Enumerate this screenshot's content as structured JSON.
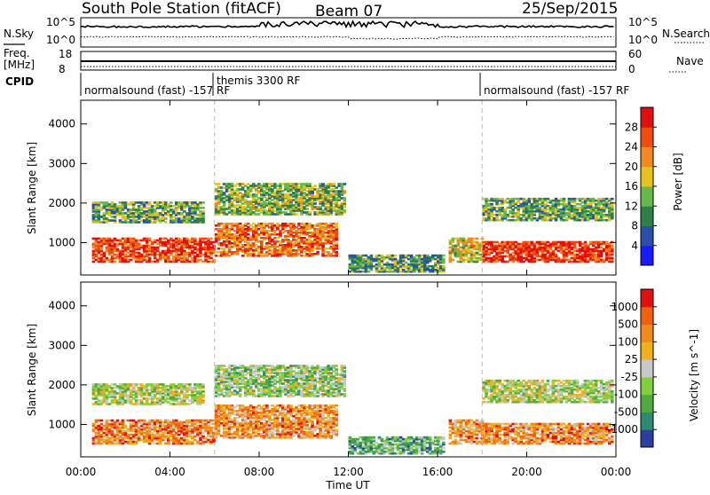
{
  "header": {
    "station": "South Pole Station (fitACF)",
    "beam": "Beam 07",
    "date": "25/Sep/2015"
  },
  "noise_panel": {
    "left_label": "N.Sky",
    "right_label": "N.Search",
    "left_ticks": [
      "10^5",
      "10^0"
    ],
    "right_ticks": [
      "10^5",
      "10^0"
    ]
  },
  "freq_panel": {
    "left_label_line1": "Freq.",
    "left_label_line2": "[MHz]",
    "left_ticks": [
      "18",
      "8"
    ],
    "right_label": "Nave",
    "right_ticks": [
      "60",
      "0"
    ]
  },
  "cpid": {
    "label": "CPID",
    "segments": [
      "normalsound (fast) -157 RF",
      "themis 3300 RF",
      "normalsound (fast) -157 RF"
    ]
  },
  "chart_data": [
    {
      "type": "heatmap",
      "title": "",
      "xlabel": "Time UT",
      "ylabel": "Slant Range [km]",
      "x_ticks": [
        "00:00",
        "04:00",
        "08:00",
        "12:00",
        "16:00",
        "20:00",
        "00:00"
      ],
      "y_ticks": [
        "1000",
        "2000",
        "3000",
        "4000"
      ],
      "xlim_hours": [
        0,
        24
      ],
      "ylim": [
        180,
        4600
      ],
      "colorbar_label": "Power [dB]",
      "colorbar_ticks": [
        "4",
        "8",
        "12",
        "16",
        "20",
        "24",
        "28"
      ],
      "colorbar_range": [
        0,
        32
      ],
      "colors": [
        "#1a1aff",
        "#2a4fa8",
        "#2f7f4a",
        "#66b84a",
        "#e8c020",
        "#f08a20",
        "#ee4d10",
        "#e01010"
      ],
      "bands": [
        {
          "t0": 0.5,
          "t1": 6.0,
          "r0": 500,
          "r1": 1100,
          "level": 0.85
        },
        {
          "t0": 6.0,
          "t1": 11.5,
          "r0": 650,
          "r1": 1500,
          "level": 0.75
        },
        {
          "t0": 0.5,
          "t1": 5.5,
          "r0": 1500,
          "r1": 2000,
          "level": 0.4
        },
        {
          "t0": 6.0,
          "t1": 11.8,
          "r0": 1700,
          "r1": 2500,
          "level": 0.45
        },
        {
          "t0": 12.0,
          "t1": 16.2,
          "r0": 250,
          "r1": 700,
          "level": 0.35
        },
        {
          "t0": 16.5,
          "t1": 18.0,
          "r0": 500,
          "r1": 1100,
          "level": 0.55
        },
        {
          "t0": 18.0,
          "t1": 23.8,
          "r0": 500,
          "r1": 1000,
          "level": 0.88
        },
        {
          "t0": 18.0,
          "t1": 23.8,
          "r0": 1550,
          "r1": 2100,
          "level": 0.4
        }
      ]
    },
    {
      "type": "heatmap",
      "title": "",
      "xlabel": "Time UT",
      "ylabel": "Slant Range [km]",
      "x_ticks": [
        "00:00",
        "04:00",
        "08:00",
        "12:00",
        "16:00",
        "20:00",
        "00:00"
      ],
      "y_ticks": [
        "1000",
        "2000",
        "3000",
        "4000"
      ],
      "xlim_hours": [
        0,
        24
      ],
      "ylim": [
        180,
        4600
      ],
      "colorbar_label": "Velocity [m s^-1]",
      "colorbar_ticks": [
        "1000",
        "500",
        "100",
        "25",
        "-25",
        "-100",
        "-500",
        "-1000"
      ],
      "colors": [
        "#2a3fa0",
        "#2e8a70",
        "#4faa40",
        "#80cf40",
        "#c8c8c8",
        "#f0b020",
        "#f08a20",
        "#f06010",
        "#e01010"
      ],
      "bands": [
        {
          "t0": 0.5,
          "t1": 6.0,
          "r0": 500,
          "r1": 1100,
          "level": 0.75
        },
        {
          "t0": 6.0,
          "t1": 11.5,
          "r0": 650,
          "r1": 1500,
          "level": 0.7
        },
        {
          "t0": 0.5,
          "t1": 5.5,
          "r0": 1500,
          "r1": 2000,
          "level": 0.45
        },
        {
          "t0": 6.0,
          "t1": 11.8,
          "r0": 1700,
          "r1": 2500,
          "level": 0.4
        },
        {
          "t0": 12.0,
          "t1": 16.2,
          "r0": 250,
          "r1": 700,
          "level": 0.3
        },
        {
          "t0": 16.5,
          "t1": 18.0,
          "r0": 500,
          "r1": 1100,
          "level": 0.7
        },
        {
          "t0": 18.0,
          "t1": 23.8,
          "r0": 500,
          "r1": 1000,
          "level": 0.72
        },
        {
          "t0": 18.0,
          "t1": 23.8,
          "r0": 1550,
          "r1": 2100,
          "level": 0.45
        }
      ]
    }
  ]
}
